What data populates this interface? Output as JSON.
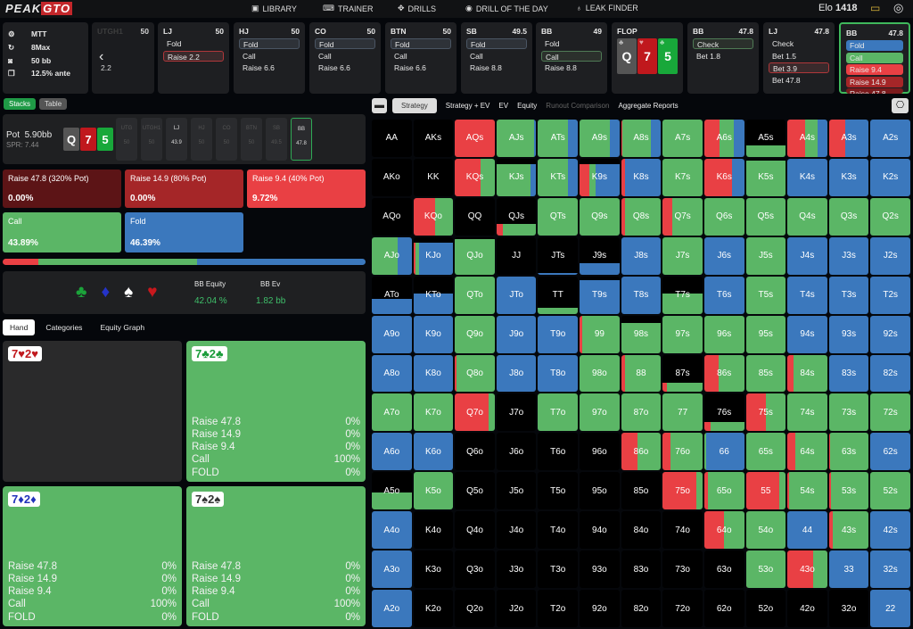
{
  "nav": {
    "logo": "PEAK",
    "logo_accent": "GTO",
    "items": [
      "LIBRARY",
      "TRAINER",
      "DRILLS",
      "DRILL OF THE DAY",
      "LEAK FINDER"
    ],
    "elo_label": "Elo",
    "elo_value": "1418"
  },
  "settings": {
    "game": "MTT",
    "players": "8Max",
    "stack": "50 bb",
    "ante": "12.5% ante"
  },
  "actions": [
    {
      "pos": "UTGH1",
      "stack": "50",
      "opts": [
        "",
        "",
        "2.2"
      ],
      "sel": -1
    },
    {
      "pos": "LJ",
      "stack": "50",
      "opts": [
        "Fold",
        "Raise 2.2"
      ],
      "sel": 1,
      "selc": "r"
    },
    {
      "pos": "HJ",
      "stack": "50",
      "opts": [
        "Fold",
        "Call",
        "Raise 6.6"
      ],
      "sel": 0
    },
    {
      "pos": "CO",
      "stack": "50",
      "opts": [
        "Fold",
        "Call",
        "Raise 6.6"
      ],
      "sel": 0
    },
    {
      "pos": "BTN",
      "stack": "50",
      "opts": [
        "Fold",
        "Call",
        "Raise 6.6"
      ],
      "sel": 0
    },
    {
      "pos": "SB",
      "stack": "49.5",
      "opts": [
        "Fold",
        "Call",
        "Raise 8.8"
      ],
      "sel": 0
    },
    {
      "pos": "BB",
      "stack": "49",
      "opts": [
        "Fold",
        "Call",
        "Raise 8.8"
      ],
      "sel": 1,
      "selc": "g"
    },
    {
      "pos": "BB",
      "stack": "47.8",
      "opts": [
        "Check",
        "Bet 1.8"
      ],
      "sel": 0,
      "selc": "g"
    },
    {
      "pos": "LJ",
      "stack": "47.8",
      "opts": [
        "Check",
        "Bet 1.5",
        "Bet 3.9",
        "Bet 47.8"
      ],
      "sel": 2,
      "selc": "r"
    },
    {
      "pos": "BB",
      "stack": "47.8",
      "opts": [
        "Fold",
        "Call",
        "Raise 9.4",
        "Raise 14.9",
        "Raise 47.8"
      ],
      "sel": -1,
      "colored": true
    }
  ],
  "flop": {
    "label": "FLOP",
    "cards": [
      {
        "rank": "Q",
        "suit": "♣",
        "color": "#555555"
      },
      {
        "rank": "7",
        "suit": "♥",
        "color": "#c0181d"
      },
      {
        "rank": "5",
        "suit": "♣",
        "color": "#18a83a"
      }
    ]
  },
  "view_tabs": [
    "Stacks",
    "Table"
  ],
  "pot": {
    "label": "Pot",
    "value": "5.90bb",
    "spr": "SPR: 7.44"
  },
  "seats": [
    {
      "pos": "UTG",
      "stack": "50"
    },
    {
      "pos": "UTGH1",
      "stack": "50"
    },
    {
      "pos": "LJ",
      "stack": "43.9"
    },
    {
      "pos": "HJ",
      "stack": "50"
    },
    {
      "pos": "CO",
      "stack": "50"
    },
    {
      "pos": "BTN",
      "stack": "50"
    },
    {
      "pos": "SB",
      "stack": "49.5"
    },
    {
      "pos": "BB",
      "stack": "47.8"
    }
  ],
  "strategy": [
    {
      "label": "Raise 47.8 (320% Pot)",
      "pct": "0.00%",
      "color": "#5c1416"
    },
    {
      "label": "Raise 14.9 (80% Pot)",
      "pct": "0.00%",
      "color": "#a52628"
    },
    {
      "label": "Raise 9.4 (40% Pot)",
      "pct": "9.72%",
      "color": "#e94044"
    },
    {
      "label": "Call",
      "pct": "43.89%",
      "color": "#5bb666"
    },
    {
      "label": "Fold",
      "pct": "46.39%",
      "color": "#3b78bd"
    }
  ],
  "freq_bar": [
    9.72,
    43.89,
    46.39
  ],
  "equity": {
    "suits": [
      "♣",
      "♦",
      "♠",
      "♥"
    ],
    "eq_label": "BB Equity",
    "eq_value": "42.04 %",
    "ev_label": "BB Ev",
    "ev_value": "1.82 bb"
  },
  "hand_tabs": [
    "Hand",
    "Categories",
    "Equity Graph"
  ],
  "hands": [
    {
      "r1": "7",
      "r2": "2",
      "suit": "♥",
      "color": "#c0181d",
      "active": false,
      "rows": []
    },
    {
      "r1": "7",
      "r2": "2",
      "suit": "♣",
      "color": "#1a9c3a",
      "active": true,
      "rows": [
        [
          "Raise 47.8",
          "0%"
        ],
        [
          "Raise 14.9",
          "0%"
        ],
        [
          "Raise 9.4",
          "0%"
        ],
        [
          "Call",
          "100%"
        ],
        [
          "FOLD",
          "0%"
        ]
      ]
    },
    {
      "r1": "7",
      "r2": "2",
      "suit": "♦",
      "color": "#2233bb",
      "active": true,
      "rows": [
        [
          "Raise 47.8",
          "0%"
        ],
        [
          "Raise 14.9",
          "0%"
        ],
        [
          "Raise 9.4",
          "0%"
        ],
        [
          "Call",
          "100%"
        ],
        [
          "FOLD",
          "0%"
        ]
      ]
    },
    {
      "r1": "7",
      "r2": "2",
      "suit": "♠",
      "color": "#333333",
      "active": true,
      "rows": [
        [
          "Raise 47.8",
          "0%"
        ],
        [
          "Raise 14.9",
          "0%"
        ],
        [
          "Raise 9.4",
          "0%"
        ],
        [
          "Call",
          "100%"
        ],
        [
          "FOLD",
          "0%"
        ]
      ]
    }
  ],
  "matrix_tabs": [
    "Strategy",
    "Strategy + EV",
    "EV",
    "Equity",
    "Runout Comparison",
    "Aggregate Reports"
  ],
  "colors": {
    "raise": "#e94044",
    "call": "#5bb666",
    "fold": "#3b78bd"
  },
  "matrix": [
    [
      [
        "AA",
        0,
        0,
        0,
        0
      ],
      [
        "AKs",
        0,
        0,
        0,
        0
      ],
      [
        "AQs",
        1,
        0,
        0,
        1
      ],
      [
        "AJs",
        0,
        0.95,
        0.05,
        1
      ],
      [
        "ATs",
        0,
        0.75,
        0.25,
        1
      ],
      [
        "A9s",
        0,
        0.75,
        0.25,
        1
      ],
      [
        "A8s",
        0.02,
        0.73,
        0.25,
        1
      ],
      [
        "A7s",
        0,
        1,
        0,
        1
      ],
      [
        "A6s",
        0.38,
        0.37,
        0.25,
        1
      ],
      [
        "A5s",
        0,
        1,
        0,
        0.3
      ],
      [
        "A4s",
        0.45,
        0.3,
        0.25,
        1
      ],
      [
        "A3s",
        0.4,
        0,
        0.6,
        1
      ],
      [
        "A2s",
        0,
        0,
        1,
        1
      ]
    ],
    [
      [
        "AKo",
        0,
        0,
        0,
        0
      ],
      [
        "KK",
        0,
        0,
        0,
        0
      ],
      [
        "KQs",
        0.65,
        0.35,
        0,
        1
      ],
      [
        "KJs",
        0,
        0.85,
        0.15,
        0.85
      ],
      [
        "KTs",
        0,
        0.75,
        0.25,
        1
      ],
      [
        "K9s",
        0.25,
        0.15,
        0.6,
        0.85
      ],
      [
        "K8s",
        0.1,
        0,
        0.9,
        1
      ],
      [
        "K7s",
        0,
        1,
        0,
        1
      ],
      [
        "K6s",
        0.7,
        0,
        0.3,
        1
      ],
      [
        "K5s",
        0,
        1,
        0,
        0.95
      ],
      [
        "K4s",
        0,
        0,
        1,
        1
      ],
      [
        "K3s",
        0,
        0,
        1,
        1
      ],
      [
        "K2s",
        0,
        0,
        1,
        1
      ]
    ],
    [
      [
        "AQo",
        0,
        0,
        0,
        0
      ],
      [
        "KQo",
        0.55,
        0.45,
        0,
        1
      ],
      [
        "QQ",
        0,
        0,
        0,
        0
      ],
      [
        "QJs",
        0.15,
        0.85,
        0,
        0.3
      ],
      [
        "QTs",
        0,
        1,
        0,
        1
      ],
      [
        "Q9s",
        0,
        1,
        0,
        1
      ],
      [
        "Q8s",
        0.1,
        0.9,
        0,
        1
      ],
      [
        "Q7s",
        0.25,
        0.75,
        0,
        1
      ],
      [
        "Q6s",
        0,
        1,
        0,
        1
      ],
      [
        "Q5s",
        0,
        1,
        0,
        1
      ],
      [
        "Q4s",
        0,
        1,
        0,
        1
      ],
      [
        "Q3s",
        0,
        1,
        0,
        1
      ],
      [
        "Q2s",
        0,
        1,
        0,
        1
      ]
    ],
    [
      [
        "AJo",
        0,
        0.65,
        0.35,
        1
      ],
      [
        "KJo",
        0.05,
        0.1,
        0.85,
        0.85
      ],
      [
        "QJo",
        0,
        1,
        0,
        0.95
      ],
      [
        "JJ",
        0,
        0,
        0,
        0
      ],
      [
        "JTs",
        0,
        0,
        1,
        0.05
      ],
      [
        "J9s",
        0,
        0,
        1,
        0.3
      ],
      [
        "J8s",
        0,
        0,
        1,
        1
      ],
      [
        "J7s",
        0,
        1,
        0,
        1
      ],
      [
        "J6s",
        0,
        0,
        1,
        1
      ],
      [
        "J5s",
        0,
        1,
        0,
        1
      ],
      [
        "J4s",
        0,
        0,
        1,
        1
      ],
      [
        "J3s",
        0,
        0,
        1,
        1
      ],
      [
        "J2s",
        0,
        0,
        1,
        1
      ]
    ],
    [
      [
        "ATo",
        0,
        0,
        1,
        0.4
      ],
      [
        "KTo",
        0,
        0,
        1,
        0.55
      ],
      [
        "QTo",
        0,
        1,
        0,
        1
      ],
      [
        "JTo",
        0,
        0,
        1,
        1
      ],
      [
        "TT",
        0,
        1,
        0,
        0.15
      ],
      [
        "T9s",
        0,
        0,
        1,
        0.9
      ],
      [
        "T8s",
        0,
        0,
        1,
        1
      ],
      [
        "T7s",
        0,
        1,
        0,
        0.55
      ],
      [
        "T6s",
        0,
        0,
        1,
        1
      ],
      [
        "T5s",
        0,
        1,
        0,
        1
      ],
      [
        "T4s",
        0,
        0,
        1,
        1
      ],
      [
        "T3s",
        0,
        0,
        1,
        1
      ],
      [
        "T2s",
        0,
        0,
        1,
        1
      ]
    ],
    [
      [
        "A9o",
        0,
        0,
        1,
        1
      ],
      [
        "K9o",
        0,
        0,
        1,
        1
      ],
      [
        "Q9o",
        0,
        1,
        0,
        1
      ],
      [
        "J9o",
        0,
        0,
        1,
        1
      ],
      [
        "T9o",
        0,
        0,
        1,
        1
      ],
      [
        "99",
        0.06,
        0.94,
        0,
        1
      ],
      [
        "98s",
        0,
        1,
        0,
        0.8
      ],
      [
        "97s",
        0,
        1,
        0,
        1
      ],
      [
        "96s",
        0,
        1,
        0,
        1
      ],
      [
        "95s",
        0,
        1,
        0,
        1
      ],
      [
        "94s",
        0,
        0,
        1,
        1
      ],
      [
        "93s",
        0,
        0,
        1,
        1
      ],
      [
        "92s",
        0,
        0,
        1,
        1
      ]
    ],
    [
      [
        "A8o",
        0,
        0,
        1,
        1
      ],
      [
        "K8o",
        0,
        0,
        1,
        1
      ],
      [
        "Q8o",
        0.05,
        0.95,
        0,
        1
      ],
      [
        "J8o",
        0,
        0,
        1,
        1
      ],
      [
        "T8o",
        0,
        0,
        1,
        1
      ],
      [
        "98o",
        0,
        1,
        0,
        1
      ],
      [
        "88",
        0.1,
        0.9,
        0,
        1
      ],
      [
        "87s",
        0.1,
        0.9,
        0,
        0.25
      ],
      [
        "86s",
        0.35,
        0.65,
        0,
        1
      ],
      [
        "85s",
        0,
        1,
        0,
        1
      ],
      [
        "84s",
        0.15,
        0.85,
        0,
        1
      ],
      [
        "83s",
        0,
        0,
        1,
        1
      ],
      [
        "82s",
        0,
        0,
        1,
        1
      ]
    ],
    [
      [
        "A7o",
        0,
        1,
        0,
        1
      ],
      [
        "K7o",
        0,
        1,
        0,
        1
      ],
      [
        "Q7o",
        0.85,
        0.15,
        0,
        1
      ],
      [
        "J7o",
        0,
        0,
        0,
        0
      ],
      [
        "T7o",
        0,
        1,
        0,
        1
      ],
      [
        "97o",
        0,
        1,
        0,
        1
      ],
      [
        "87o",
        0,
        1,
        0,
        1
      ],
      [
        "77",
        0,
        1,
        0,
        1
      ],
      [
        "76s",
        0.15,
        0.85,
        0,
        0.25
      ],
      [
        "75s",
        0.5,
        0.5,
        0,
        1
      ],
      [
        "74s",
        0,
        1,
        0,
        1
      ],
      [
        "73s",
        0,
        1,
        0,
        1
      ],
      [
        "72s",
        0,
        1,
        0,
        1
      ]
    ],
    [
      [
        "A6o",
        0,
        0,
        1,
        1
      ],
      [
        "K6o",
        0,
        0,
        1,
        1
      ],
      [
        "Q6o",
        0,
        0,
        0,
        0
      ],
      [
        "J6o",
        0,
        0,
        0,
        0
      ],
      [
        "T6o",
        0,
        0,
        0,
        0
      ],
      [
        "96o",
        0,
        0,
        0,
        0
      ],
      [
        "86o",
        0.4,
        0.6,
        0,
        1
      ],
      [
        "76o",
        0.2,
        0.8,
        0,
        1
      ],
      [
        "66",
        0,
        0.05,
        0.95,
        1
      ],
      [
        "65s",
        0.02,
        0.98,
        0,
        1
      ],
      [
        "64s",
        0.2,
        0.8,
        0,
        1
      ],
      [
        "63s",
        0.02,
        0.98,
        0,
        1
      ],
      [
        "62s",
        0,
        0,
        1,
        1
      ]
    ],
    [
      [
        "A5o",
        0,
        1,
        0,
        0.45
      ],
      [
        "K5o",
        0,
        1,
        0,
        1
      ],
      [
        "Q5o",
        0,
        0,
        0,
        0
      ],
      [
        "J5o",
        0,
        0,
        0,
        0
      ],
      [
        "T5o",
        0,
        0,
        0,
        0
      ],
      [
        "95o",
        0,
        0,
        0,
        0
      ],
      [
        "85o",
        0,
        0,
        0,
        0
      ],
      [
        "75o",
        0.85,
        0.15,
        0,
        1
      ],
      [
        "65o",
        0.1,
        0.9,
        0,
        1
      ],
      [
        "55",
        0.85,
        0.15,
        0,
        1
      ],
      [
        "54s",
        0.05,
        0.95,
        0,
        1
      ],
      [
        "53s",
        0.05,
        0.95,
        0,
        1
      ],
      [
        "52s",
        0,
        1,
        0,
        1
      ]
    ],
    [
      [
        "A4o",
        0,
        0,
        1,
        1
      ],
      [
        "K4o",
        0,
        0,
        0,
        0
      ],
      [
        "Q4o",
        0,
        0,
        0,
        0
      ],
      [
        "J4o",
        0,
        0,
        0,
        0
      ],
      [
        "T4o",
        0,
        0,
        0,
        0
      ],
      [
        "94o",
        0,
        0,
        0,
        0
      ],
      [
        "84o",
        0,
        0,
        0,
        0
      ],
      [
        "74o",
        0,
        0,
        0,
        0
      ],
      [
        "64o",
        0.5,
        0.5,
        0,
        1
      ],
      [
        "54o",
        0.02,
        0.98,
        0,
        1
      ],
      [
        "44",
        0,
        0,
        1,
        1
      ],
      [
        "43s",
        0.1,
        0.9,
        0,
        1
      ],
      [
        "42s",
        0,
        0,
        1,
        1
      ]
    ],
    [
      [
        "A3o",
        0,
        0,
        1,
        1
      ],
      [
        "K3o",
        0,
        0,
        0,
        0
      ],
      [
        "Q3o",
        0,
        0,
        0,
        0
      ],
      [
        "J3o",
        0,
        0,
        0,
        0
      ],
      [
        "T3o",
        0,
        0,
        0,
        0
      ],
      [
        "93o",
        0,
        0,
        0,
        0
      ],
      [
        "83o",
        0,
        0,
        0,
        0
      ],
      [
        "73o",
        0,
        0,
        0,
        0
      ],
      [
        "63o",
        0,
        0,
        0,
        0
      ],
      [
        "53o",
        0.02,
        0.98,
        0,
        1
      ],
      [
        "43o",
        0.65,
        0.35,
        0,
        1
      ],
      [
        "33",
        0,
        0,
        1,
        1
      ],
      [
        "32s",
        0,
        0,
        1,
        1
      ]
    ],
    [
      [
        "A2o",
        0,
        0,
        1,
        1
      ],
      [
        "K2o",
        0,
        0,
        0,
        0
      ],
      [
        "Q2o",
        0,
        0,
        0,
        0
      ],
      [
        "J2o",
        0,
        0,
        0,
        0
      ],
      [
        "T2o",
        0,
        0,
        0,
        0
      ],
      [
        "92o",
        0,
        0,
        0,
        0
      ],
      [
        "82o",
        0,
        0,
        0,
        0
      ],
      [
        "72o",
        0,
        0,
        0,
        0
      ],
      [
        "62o",
        0,
        0,
        0,
        0
      ],
      [
        "52o",
        0,
        0,
        0,
        0
      ],
      [
        "42o",
        0,
        0,
        0,
        0
      ],
      [
        "32o",
        0,
        0,
        0,
        0
      ],
      [
        "22",
        0,
        0,
        1,
        1
      ]
    ]
  ]
}
